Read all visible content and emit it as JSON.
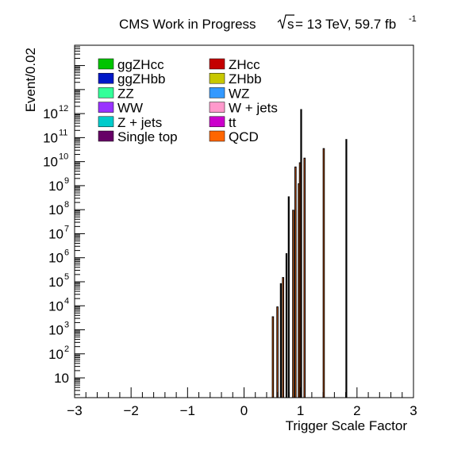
{
  "header": {
    "experiment": "CMS Work in Progress",
    "sqrt_s": "s",
    "energy_lumi": "= 13 TeV, 59.7 fb",
    "lumi_exponent": "-1"
  },
  "chart_data": {
    "type": "bar",
    "xlabel": "Trigger Scale Factor",
    "ylabel": "Event/0.02",
    "xlim": [
      -3,
      3
    ],
    "ylim": [
      1.5,
      700000000000000
    ],
    "ylog": true,
    "grid": false,
    "legend_placement": "top-left",
    "x_ticks": [
      {
        "value": -3,
        "label": "−3"
      },
      {
        "value": -2,
        "label": "−2"
      },
      {
        "value": -1,
        "label": "−1"
      },
      {
        "value": 0,
        "label": "0"
      },
      {
        "value": 1,
        "label": "1"
      },
      {
        "value": 2,
        "label": "2"
      },
      {
        "value": 3,
        "label": "3"
      }
    ],
    "y_ticks": [
      {
        "value": 10,
        "base": "10",
        "exp": ""
      },
      {
        "value": 100,
        "base": "10",
        "exp": "2"
      },
      {
        "value": 1000,
        "base": "10",
        "exp": "3"
      },
      {
        "value": 10000,
        "base": "10",
        "exp": "4"
      },
      {
        "value": 100000,
        "base": "10",
        "exp": "5"
      },
      {
        "value": 1000000,
        "base": "10",
        "exp": "6"
      },
      {
        "value": 10000000,
        "base": "10",
        "exp": "7"
      },
      {
        "value": 100000000,
        "base": "10",
        "exp": "8"
      },
      {
        "value": 1000000000,
        "base": "10",
        "exp": "9"
      },
      {
        "value": 10000000000,
        "base": "10",
        "exp": "10"
      },
      {
        "value": 100000000000,
        "base": "10",
        "exp": "11"
      },
      {
        "value": 1000000000000,
        "base": "10",
        "exp": "12"
      }
    ],
    "legend": [
      {
        "name": "ggZHcc",
        "color": "#00c400"
      },
      {
        "name": "ZHcc",
        "color": "#c40000"
      },
      {
        "name": "ggZHbb",
        "color": "#0019c8"
      },
      {
        "name": "ZHbb",
        "color": "#c8c800"
      },
      {
        "name": "ZZ",
        "color": "#33ff99"
      },
      {
        "name": "WZ",
        "color": "#3399ff"
      },
      {
        "name": "WW",
        "color": "#9933ff"
      },
      {
        "name": "W + jets",
        "color": "#ff99cc"
      },
      {
        "name": "Z + jets",
        "color": "#00cccc"
      },
      {
        "name": "tt",
        "color": "#cc00cc"
      },
      {
        "name": "Single top",
        "color": "#660066"
      },
      {
        "name": "QCD",
        "color": "#ff6600"
      }
    ],
    "bins": [
      {
        "x_low": 0.5,
        "x_high": 0.52,
        "value": 3500,
        "fill": "QCD"
      },
      {
        "x_low": 0.58,
        "x_high": 0.6,
        "value": 9000,
        "fill": "QCD"
      },
      {
        "x_low": 0.64,
        "x_high": 0.66,
        "value": 85000,
        "fill": "none"
      },
      {
        "x_low": 0.68,
        "x_high": 0.7,
        "value": 150000,
        "fill": "QCD"
      },
      {
        "x_low": 0.74,
        "x_high": 0.76,
        "value": 1500000,
        "fill": "none"
      },
      {
        "x_low": 0.78,
        "x_high": 0.8,
        "value": 350000000,
        "fill": "none"
      },
      {
        "x_low": 0.86,
        "x_high": 0.88,
        "value": 95000000,
        "fill": "QCD"
      },
      {
        "x_low": 0.9,
        "x_high": 0.92,
        "value": 6000000000,
        "fill": "QCD"
      },
      {
        "x_low": 0.96,
        "x_high": 0.98,
        "value": 1200000000,
        "fill": "QCD"
      },
      {
        "x_low": 0.98,
        "x_high": 1.0,
        "value": 9000000000,
        "fill": "QCD"
      },
      {
        "x_low": 1.0,
        "x_high": 1.02,
        "value": 1500000000000,
        "fill": "none"
      },
      {
        "x_low": 1.06,
        "x_high": 1.08,
        "value": 14000000000,
        "fill": "QCD"
      },
      {
        "x_low": 1.4,
        "x_high": 1.42,
        "value": 35000000000,
        "fill": "QCD"
      },
      {
        "x_low": 1.8,
        "x_high": 1.82,
        "value": 85000000000,
        "fill": "none"
      }
    ]
  }
}
